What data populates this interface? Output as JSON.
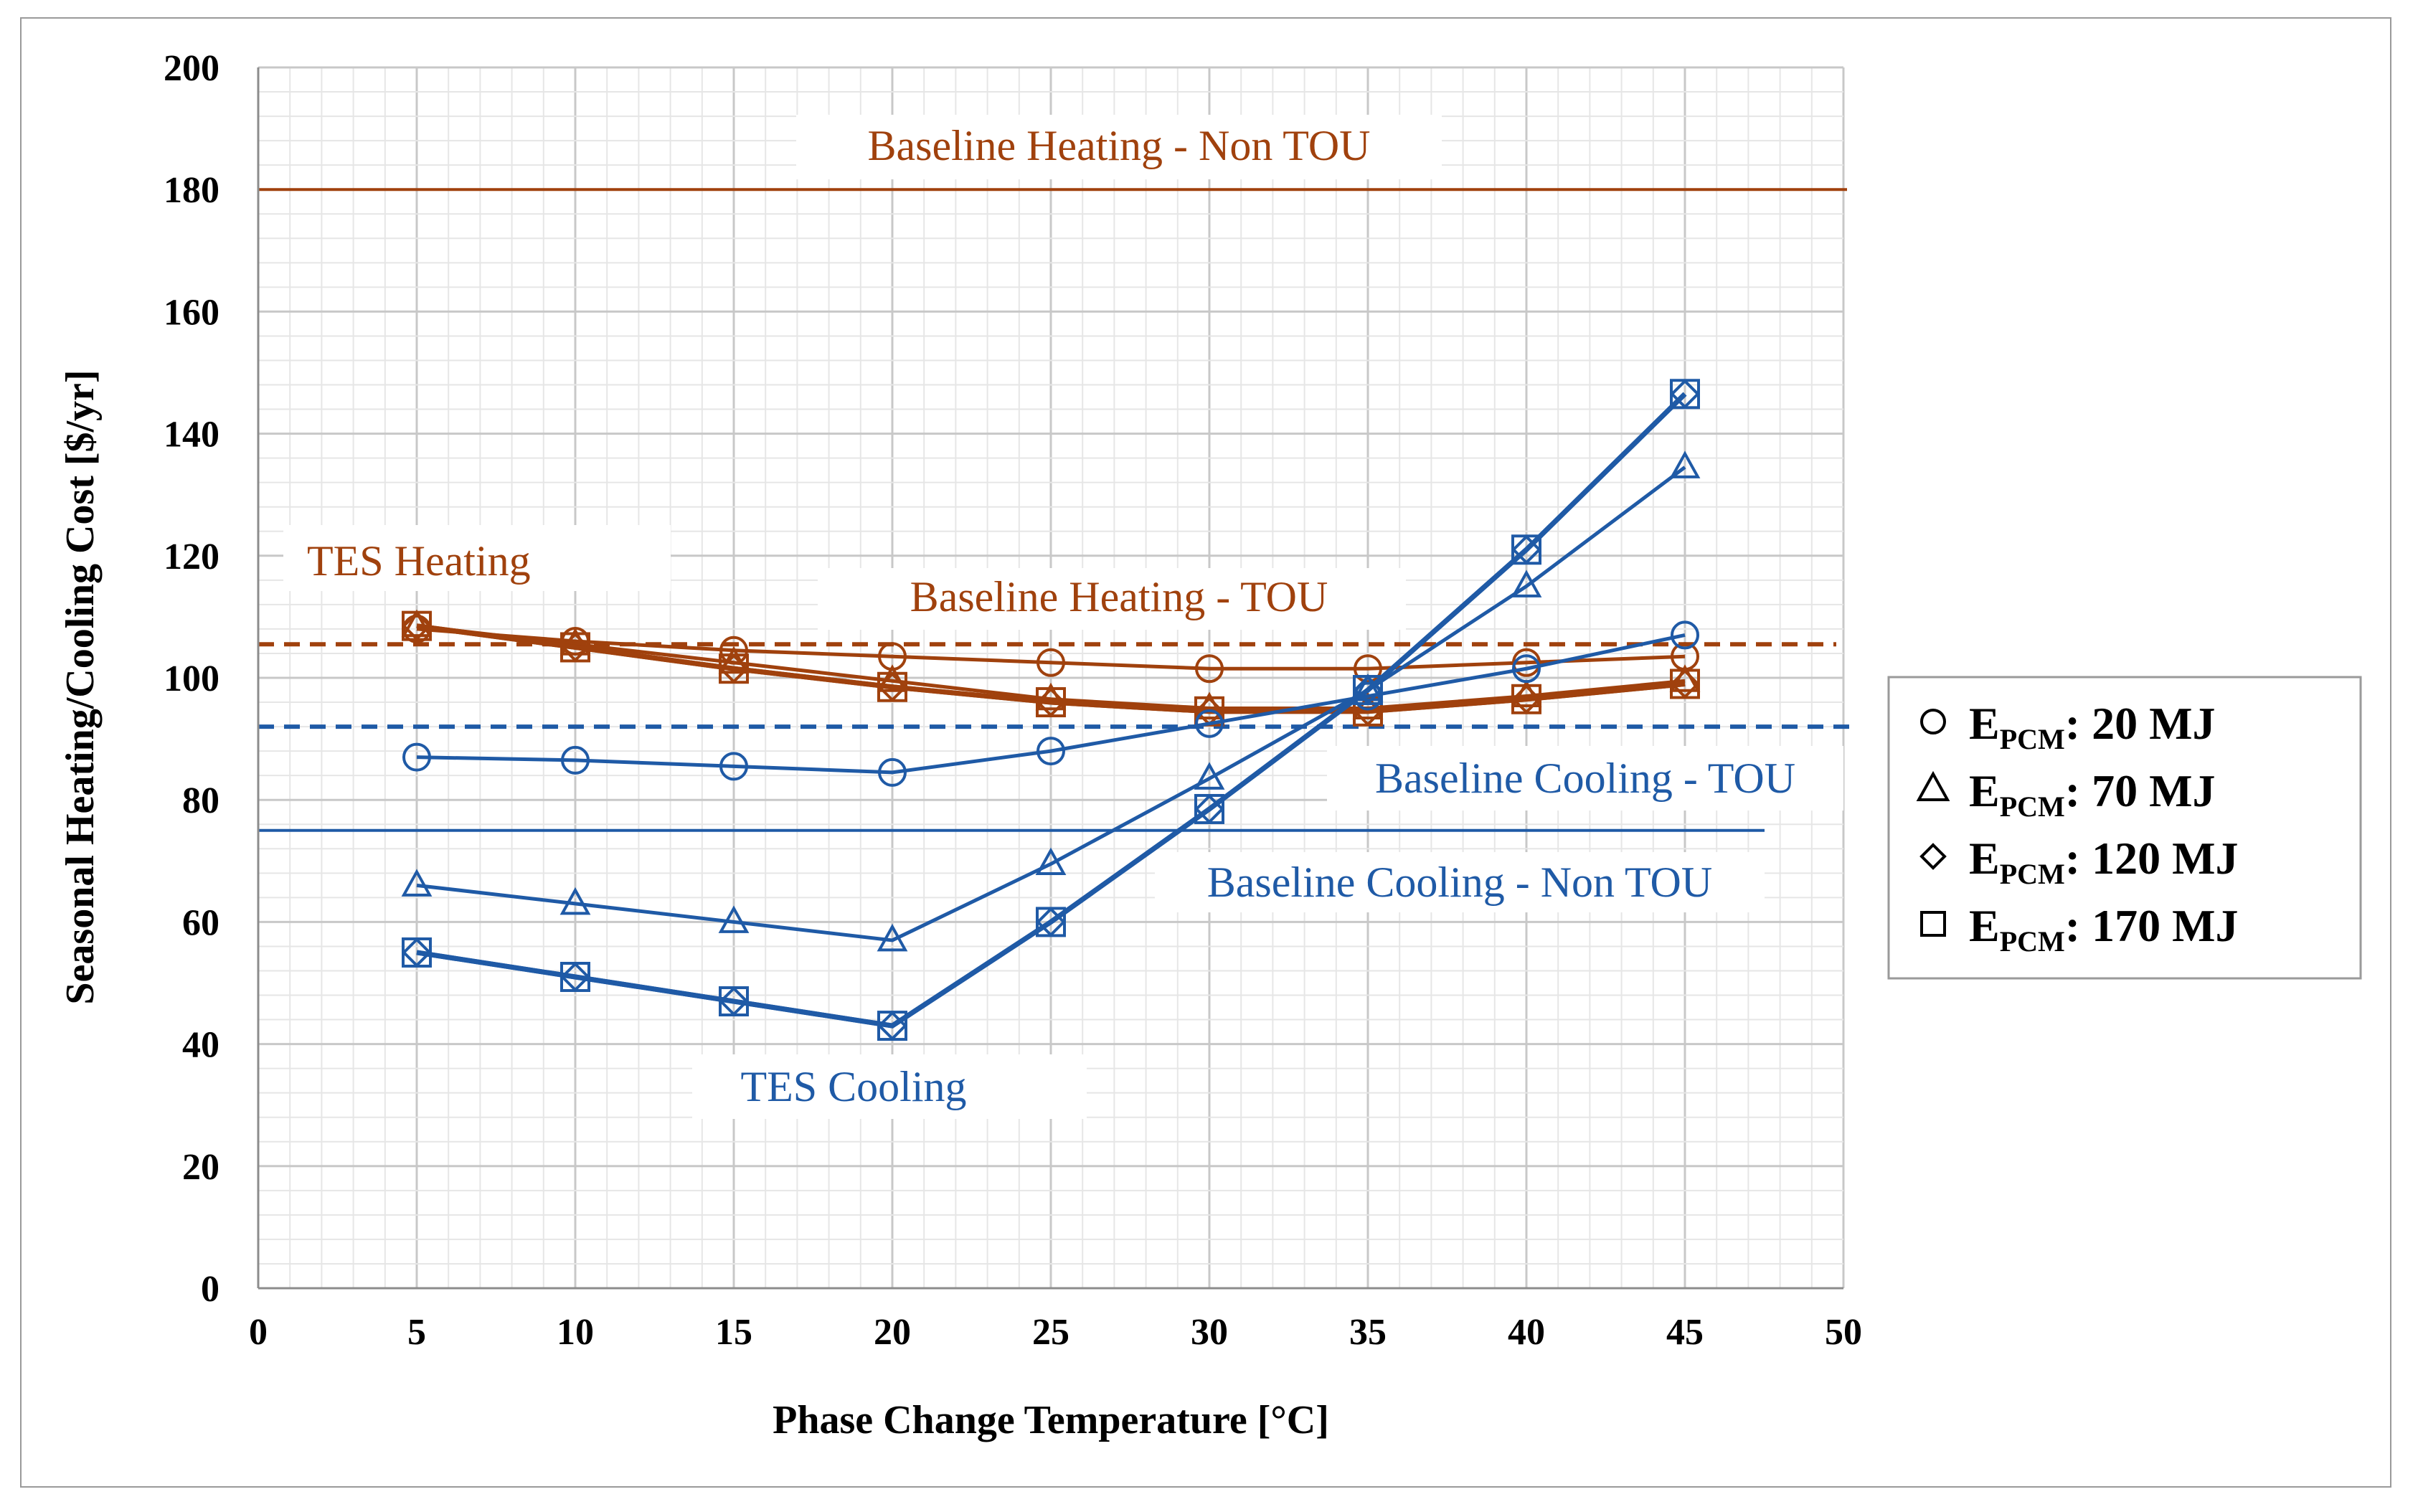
{
  "colors": {
    "heating": "#A0410D",
    "cooling": "#1F5AA6",
    "grid_major": "#c8c8c8",
    "grid_minor": "#e6e6e6"
  },
  "chart_data": {
    "type": "line",
    "title": "",
    "xlabel": "Phase Change Temperature [°C]",
    "ylabel": "Seasonal Heating/Cooling  Cost [$/yr]",
    "xlim": [
      0,
      50
    ],
    "ylim": [
      0,
      200
    ],
    "xticks": [
      "0",
      "5",
      "10",
      "15",
      "20",
      "25",
      "30",
      "35",
      "40",
      "45",
      "50"
    ],
    "yticks": [
      "0",
      "20",
      "40",
      "60",
      "80",
      "100",
      "120",
      "140",
      "160",
      "180",
      "200"
    ],
    "x": [
      5,
      10,
      15,
      20,
      25,
      30,
      35,
      40,
      45
    ],
    "series": [
      {
        "name": "TES Heating E_PCM 20 MJ",
        "group": "heating",
        "marker": "circle",
        "values": [
          108,
          106,
          104.5,
          103.5,
          102.5,
          101.5,
          101.5,
          102.5,
          103.5
        ]
      },
      {
        "name": "TES Heating E_PCM 70 MJ",
        "group": "heating",
        "marker": "triangle",
        "values": [
          108.5,
          105.5,
          102.5,
          99.5,
          96.5,
          95,
          95,
          97,
          99.5
        ]
      },
      {
        "name": "TES Heating E_PCM 120 MJ",
        "group": "heating",
        "marker": "diamond",
        "values": [
          108.5,
          105,
          101.5,
          98.5,
          96,
          94.5,
          94.5,
          96.5,
          99
        ]
      },
      {
        "name": "TES Heating E_PCM 170 MJ",
        "group": "heating",
        "marker": "square",
        "values": [
          108.5,
          105,
          101.5,
          98.5,
          96,
          94.5,
          94.5,
          96.5,
          99
        ]
      },
      {
        "name": "TES Cooling E_PCM 20 MJ",
        "group": "cooling",
        "marker": "circle",
        "values": [
          87,
          86.5,
          85.5,
          84.5,
          88,
          92.5,
          97,
          101.5,
          107
        ]
      },
      {
        "name": "TES Cooling E_PCM 70 MJ",
        "group": "cooling",
        "marker": "triangle",
        "values": [
          66,
          63,
          60,
          57,
          69.5,
          83.5,
          98,
          115,
          134.5
        ]
      },
      {
        "name": "TES Cooling E_PCM 120 MJ",
        "group": "cooling",
        "marker": "diamond",
        "values": [
          55,
          51,
          47,
          43,
          60,
          78.5,
          98,
          121,
          146.5
        ]
      },
      {
        "name": "TES Cooling E_PCM 170 MJ",
        "group": "cooling",
        "marker": "square",
        "values": [
          55,
          51,
          47,
          43,
          60,
          78.5,
          98,
          121,
          146.5
        ]
      }
    ],
    "baselines": [
      {
        "name": "Baseline Heating - Non TOU",
        "group": "heating",
        "style": "solid",
        "value": 180
      },
      {
        "name": "Baseline Heating - TOU",
        "group": "heating",
        "style": "dashed",
        "value": 105.5
      },
      {
        "name": "Baseline Cooling - TOU",
        "group": "cooling",
        "style": "dashed",
        "value": 92
      },
      {
        "name": "Baseline Cooling - Non TOU",
        "group": "cooling",
        "style": "solid",
        "value": 75
      }
    ],
    "annotations": {
      "baseline_heating_non_tou": "Baseline Heating - Non TOU",
      "tes_heating": "TES Heating",
      "baseline_heating_tou": "Baseline Heating - TOU",
      "baseline_cooling_tou": "Baseline Cooling - TOU",
      "baseline_cooling_non_tou": "Baseline Cooling - Non TOU",
      "tes_cooling": "TES Cooling"
    },
    "legend": {
      "position": "right",
      "prefix": "E",
      "subscript": "PCM",
      "entries": [
        {
          "marker": "circle",
          "value": ": 20 MJ"
        },
        {
          "marker": "triangle",
          "value": ": 70 MJ"
        },
        {
          "marker": "diamond",
          "value": ": 120 MJ"
        },
        {
          "marker": "square",
          "value": ": 170 MJ"
        }
      ]
    }
  }
}
